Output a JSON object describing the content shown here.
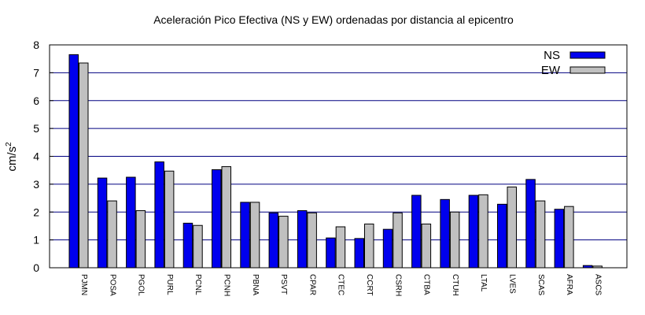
{
  "chart_data": {
    "type": "bar",
    "title": "Aceleración Pico Efectiva (NS y EW) ordenadas por distancia al epicentro",
    "xlabel": "",
    "ylabel": "cm/s",
    "ylabel_sup": "2",
    "ylim": [
      0,
      8
    ],
    "yticks": [
      0,
      1,
      2,
      3,
      4,
      5,
      6,
      7,
      8
    ],
    "grid": true,
    "legend_position": "top-right",
    "categories": [
      "PJMN",
      "POSA",
      "PGOL",
      "PURL",
      "PCNL",
      "PCNH",
      "PBNA",
      "PSVT",
      "CPAR",
      "CTEC",
      "CCRT",
      "CSRH",
      "CTBA",
      "CTUH",
      "LTAL",
      "LVES",
      "SCAS",
      "AFRA",
      "ASCS"
    ],
    "series": [
      {
        "name": "NS",
        "color": "#0000ee",
        "values": [
          7.65,
          3.22,
          3.25,
          3.8,
          1.6,
          3.52,
          2.35,
          1.97,
          2.05,
          1.07,
          1.05,
          1.38,
          2.6,
          2.45,
          2.6,
          2.28,
          3.17,
          2.1,
          0.08
        ]
      },
      {
        "name": "EW",
        "color": "#c0c0c0",
        "values": [
          7.35,
          2.4,
          2.05,
          3.47,
          1.52,
          3.63,
          2.35,
          1.85,
          1.97,
          1.47,
          1.57,
          1.97,
          1.57,
          2.0,
          2.62,
          2.9,
          2.4,
          2.2,
          0.06
        ]
      }
    ]
  }
}
